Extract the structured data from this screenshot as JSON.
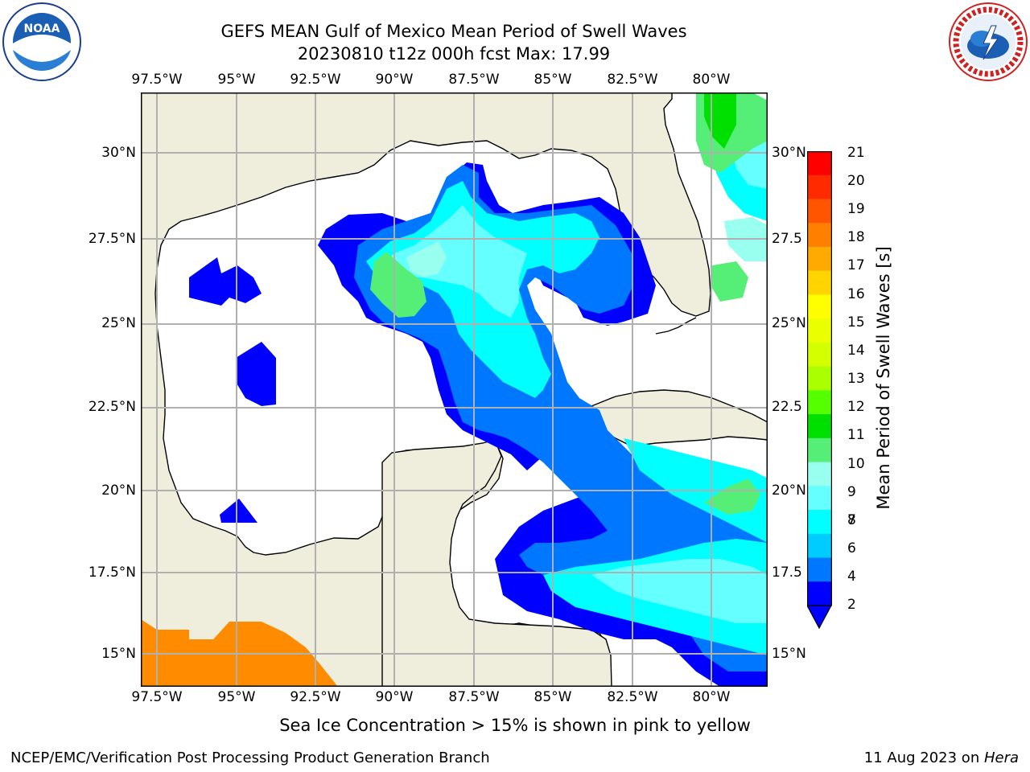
{
  "title": {
    "line1": "GEFS MEAN Gulf of Mexico Mean Period of Swell Waves",
    "line2": "20230810 t12z 000h fcst   Max: 17.99"
  },
  "map": {
    "lon_ticks": [
      "97.5°W",
      "95°W",
      "92.5°W",
      "90°W",
      "87.5°W",
      "85°W",
      "82.5°W",
      "80°W"
    ],
    "lat_ticks_left": [
      "30°N",
      "27.5°N",
      "25°N",
      "22.5°N",
      "20°N",
      "17.5°N",
      "15°N"
    ],
    "lat_ticks_right": [
      "30°N",
      "27.5",
      "25°N",
      "22.5",
      "20°N",
      "17.5",
      "15°N"
    ],
    "colors": {
      "land": "#efeedc",
      "ice": "#ff8c00",
      "grid": "#b0b0b0"
    }
  },
  "colorbar": {
    "label": "Mean Period of Swell Waves [s]",
    "ticks": [
      "21",
      "20",
      "19",
      "18",
      "17",
      "16",
      "15",
      "14",
      "13",
      "12",
      "11",
      "10",
      "9",
      "8",
      "7",
      "6",
      "4",
      "2"
    ],
    "colors": [
      "#ff0000",
      "#ff2a00",
      "#ff5500",
      "#ff7f00",
      "#ffaa00",
      "#ffd400",
      "#ffff00",
      "#eaff00",
      "#d4ff00",
      "#aaff00",
      "#55ff00",
      "#00e000",
      "#55ee77",
      "#99ffee",
      "#66ffff",
      "#00ffff",
      "#00ccff",
      "#0077ff",
      "#0000ff"
    ]
  },
  "notes": {
    "ice": "Sea Ice Concentration > 15% is shown in pink to yellow"
  },
  "footer": {
    "left": "NCEP/EMC/Verification Post Processing Product Generation Branch",
    "right_date": "11 Aug 2023 on ",
    "right_machine": "Hera"
  },
  "logos": {
    "left_text": "NOAA",
    "right_text": "NATIONAL WEATHER SERVICE"
  }
}
